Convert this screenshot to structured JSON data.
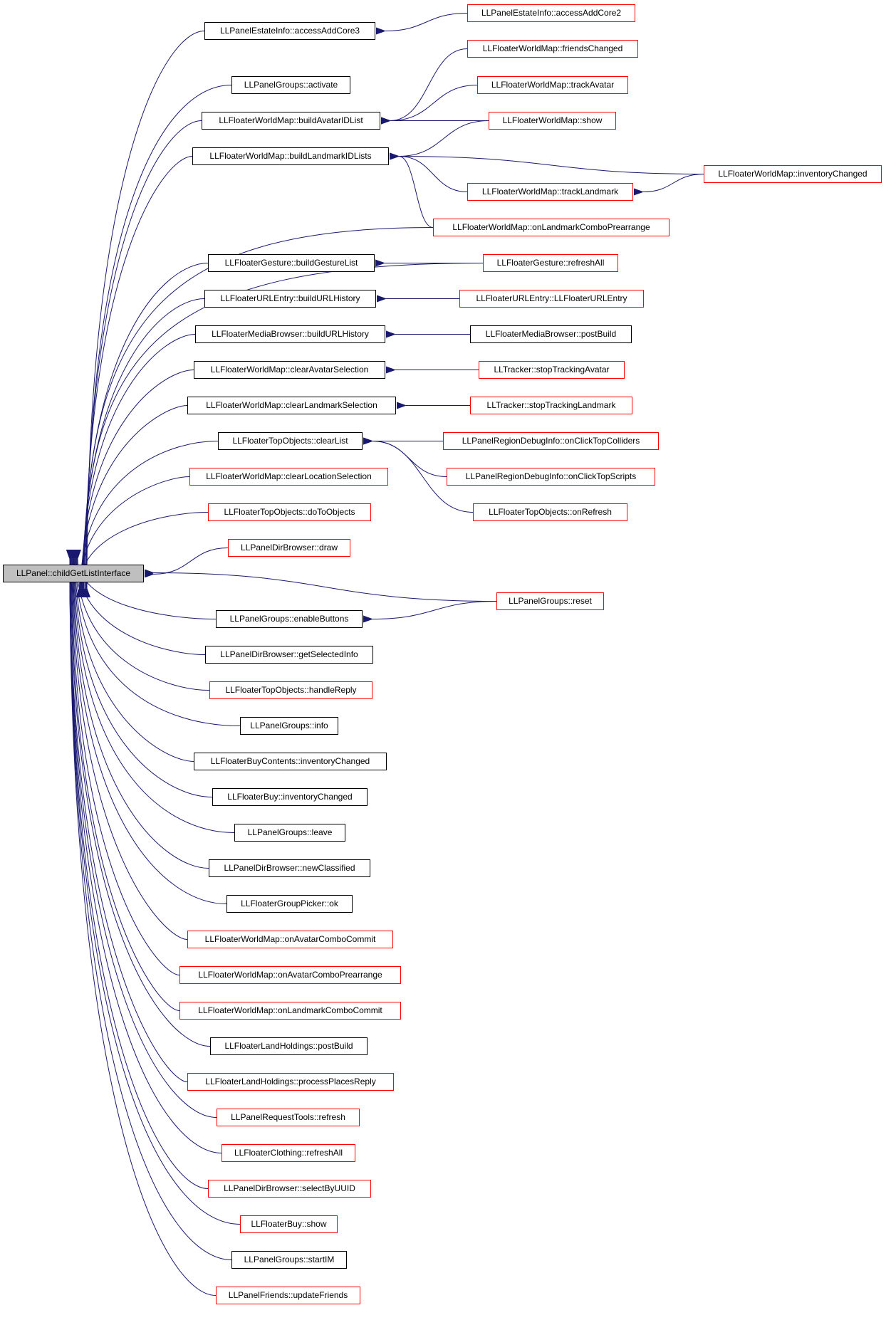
{
  "colors": {
    "edge": "#191970",
    "node_border_documented": "#000000",
    "node_border_external": "#ff0000",
    "root_fill": "#bfbfbf"
  },
  "root": {
    "label": "LLPanel::childGetListInterface"
  },
  "nodes": {
    "n01": {
      "label": "LLPanelEstateInfo::accessAddCore3",
      "style": "black"
    },
    "n02": {
      "label": "LLPanelEstateInfo::accessAddCore2",
      "style": "red"
    },
    "n03": {
      "label": "LLFloaterWorldMap::friendsChanged",
      "style": "red"
    },
    "n04": {
      "label": "LLPanelGroups::activate",
      "style": "black"
    },
    "n05": {
      "label": "LLFloaterWorldMap::trackAvatar",
      "style": "red"
    },
    "n06": {
      "label": "LLFloaterWorldMap::buildAvatarIDList",
      "style": "black"
    },
    "n07": {
      "label": "LLFloaterWorldMap::show",
      "style": "red"
    },
    "n08": {
      "label": "LLFloaterWorldMap::buildLandmarkIDLists",
      "style": "black"
    },
    "n09": {
      "label": "LLFloaterWorldMap::inventoryChanged",
      "style": "red"
    },
    "n10": {
      "label": "LLFloaterWorldMap::trackLandmark",
      "style": "red"
    },
    "n11": {
      "label": "LLFloaterWorldMap::onLandmarkComboPrearrange",
      "style": "red"
    },
    "n12": {
      "label": "LLFloaterGesture::buildGestureList",
      "style": "black"
    },
    "n13": {
      "label": "LLFloaterGesture::refreshAll",
      "style": "red"
    },
    "n14": {
      "label": "LLFloaterURLEntry::buildURLHistory",
      "style": "black"
    },
    "n15": {
      "label": "LLFloaterURLEntry::LLFloaterURLEntry",
      "style": "red"
    },
    "n16": {
      "label": "LLFloaterMediaBrowser::buildURLHistory",
      "style": "black"
    },
    "n17": {
      "label": "LLFloaterMediaBrowser::postBuild",
      "style": "black"
    },
    "n18": {
      "label": "LLFloaterWorldMap::clearAvatarSelection",
      "style": "black"
    },
    "n19": {
      "label": "LLTracker::stopTrackingAvatar",
      "style": "red"
    },
    "n20": {
      "label": "LLFloaterWorldMap::clearLandmarkSelection",
      "style": "black"
    },
    "n21": {
      "label": "LLTracker::stopTrackingLandmark",
      "style": "red"
    },
    "n22": {
      "label": "LLFloaterTopObjects::clearList",
      "style": "black"
    },
    "n23": {
      "label": "LLPanelRegionDebugInfo::onClickTopColliders",
      "style": "red"
    },
    "n24": {
      "label": "LLFloaterWorldMap::clearLocationSelection",
      "style": "red"
    },
    "n25": {
      "label": "LLPanelRegionDebugInfo::onClickTopScripts",
      "style": "red"
    },
    "n26": {
      "label": "LLFloaterTopObjects::doToObjects",
      "style": "red"
    },
    "n27": {
      "label": "LLFloaterTopObjects::onRefresh",
      "style": "red"
    },
    "n28": {
      "label": "LLPanelDirBrowser::draw",
      "style": "red"
    },
    "n29": {
      "label": "LLPanelGroups::reset",
      "style": "red"
    },
    "n30": {
      "label": "LLPanelGroups::enableButtons",
      "style": "black"
    },
    "n31": {
      "label": "LLPanelDirBrowser::getSelectedInfo",
      "style": "black"
    },
    "n32": {
      "label": "LLFloaterTopObjects::handleReply",
      "style": "red"
    },
    "n33": {
      "label": "LLPanelGroups::info",
      "style": "black"
    },
    "n34": {
      "label": "LLFloaterBuyContents::inventoryChanged",
      "style": "black"
    },
    "n35": {
      "label": "LLFloaterBuy::inventoryChanged",
      "style": "black"
    },
    "n36": {
      "label": "LLPanelGroups::leave",
      "style": "black"
    },
    "n37": {
      "label": "LLPanelDirBrowser::newClassified",
      "style": "black"
    },
    "n38": {
      "label": "LLFloaterGroupPicker::ok",
      "style": "black"
    },
    "n39": {
      "label": "LLFloaterWorldMap::onAvatarComboCommit",
      "style": "red"
    },
    "n40": {
      "label": "LLFloaterWorldMap::onAvatarComboPrearrange",
      "style": "red"
    },
    "n41": {
      "label": "LLFloaterWorldMap::onLandmarkComboCommit",
      "style": "red"
    },
    "n42": {
      "label": "LLFloaterLandHoldings::postBuild",
      "style": "black"
    },
    "n43": {
      "label": "LLFloaterLandHoldings::processPlacesReply",
      "style": "red"
    },
    "n44": {
      "label": "LLPanelRequestTools::refresh",
      "style": "red"
    },
    "n45": {
      "label": "LLFloaterClothing::refreshAll",
      "style": "red"
    },
    "n46": {
      "label": "LLPanelDirBrowser::selectByUUID",
      "style": "red"
    },
    "n47": {
      "label": "LLFloaterBuy::show",
      "style": "red"
    },
    "n48": {
      "label": "LLPanelGroups::startIM",
      "style": "black"
    },
    "n49": {
      "label": "LLPanelFriends::updateFriends",
      "style": "red"
    }
  },
  "edges": [
    [
      "n01",
      "root"
    ],
    [
      "n02",
      "n01"
    ],
    [
      "n04",
      "root"
    ],
    [
      "n06",
      "root"
    ],
    [
      "n03",
      "n06"
    ],
    [
      "n05",
      "n06"
    ],
    [
      "n07",
      "n06"
    ],
    [
      "n08",
      "root"
    ],
    [
      "n07",
      "n08"
    ],
    [
      "n09",
      "n08"
    ],
    [
      "n09",
      "n10"
    ],
    [
      "n10",
      "n08"
    ],
    [
      "n11",
      "n08"
    ],
    [
      "n11",
      "root"
    ],
    [
      "n13",
      "root"
    ],
    [
      "n12",
      "root"
    ],
    [
      "n13",
      "n12"
    ],
    [
      "n14",
      "root"
    ],
    [
      "n15",
      "n14"
    ],
    [
      "n16",
      "root"
    ],
    [
      "n17",
      "n16"
    ],
    [
      "n18",
      "root"
    ],
    [
      "n19",
      "n18"
    ],
    [
      "n20",
      "root"
    ],
    [
      "n21",
      "n20"
    ],
    [
      "n22",
      "root"
    ],
    [
      "n23",
      "n22"
    ],
    [
      "n25",
      "n22"
    ],
    [
      "n27",
      "n22"
    ],
    [
      "n24",
      "root"
    ],
    [
      "n26",
      "root"
    ],
    [
      "n28",
      "root"
    ],
    [
      "n29",
      "root"
    ],
    [
      "n30",
      "root"
    ],
    [
      "n29",
      "n30"
    ],
    [
      "n31",
      "root"
    ],
    [
      "n32",
      "root"
    ],
    [
      "n33",
      "root"
    ],
    [
      "n34",
      "root"
    ],
    [
      "n35",
      "root"
    ],
    [
      "n36",
      "root"
    ],
    [
      "n37",
      "root"
    ],
    [
      "n38",
      "root"
    ],
    [
      "n39",
      "root"
    ],
    [
      "n40",
      "root"
    ],
    [
      "n41",
      "root"
    ],
    [
      "n42",
      "root"
    ],
    [
      "n43",
      "root"
    ],
    [
      "n44",
      "root"
    ],
    [
      "n45",
      "root"
    ],
    [
      "n46",
      "root"
    ],
    [
      "n47",
      "root"
    ],
    [
      "n48",
      "root"
    ],
    [
      "n49",
      "root"
    ]
  ]
}
